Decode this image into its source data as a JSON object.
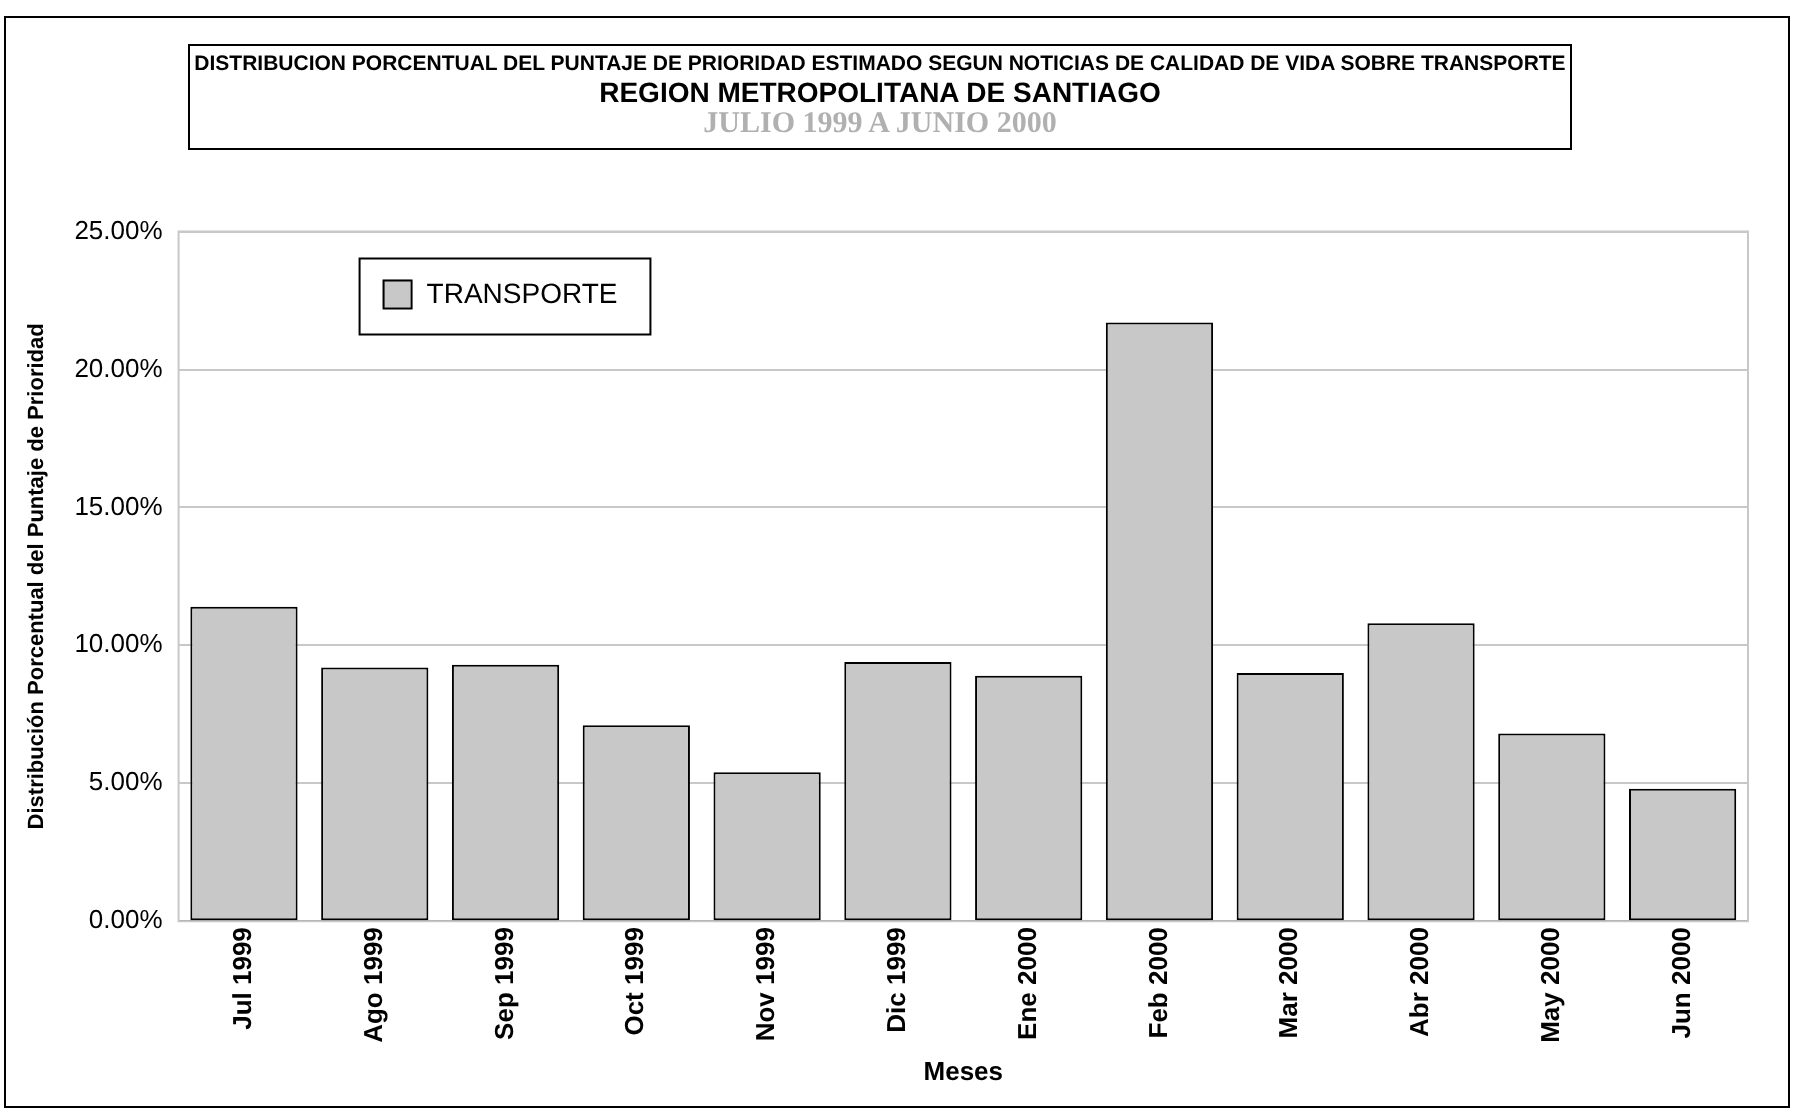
{
  "chart_data": {
    "type": "bar",
    "title": "DISTRIBUCION PORCENTUAL DEL PUNTAJE DE PRIORIDAD ESTIMADO SEGUN NOTICIAS DE CALIDAD DE VIDA SOBRE TRANSPORTE",
    "subtitle": "REGION METROPOLITANA DE SANTIAGO",
    "annotations": [
      "JULIO 1999 A JUNIO 2000"
    ],
    "xlabel": "Meses",
    "ylabel": "Distribución Porcentual del Puntaje de Prioridad",
    "categories": [
      "Jul 1999",
      "Ago 1999",
      "Sep 1999",
      "Oct 1999",
      "Nov 1999",
      "Dic 1999",
      "Ene 2000",
      "Feb 2000",
      "Mar 2000",
      "Abr 2000",
      "May 2000",
      "Jun 2000"
    ],
    "series": [
      {
        "name": "TRANSPORTE",
        "color": "#c8c8c8",
        "values": [
          11.4,
          9.2,
          9.3,
          7.1,
          5.4,
          9.4,
          8.9,
          21.7,
          9.0,
          10.8,
          6.8,
          4.8
        ]
      }
    ],
    "ylim": [
      0,
      25
    ],
    "yticks": [
      {
        "value": 0,
        "label": "0.00%"
      },
      {
        "value": 5,
        "label": "5.00%"
      },
      {
        "value": 10,
        "label": "10.00%"
      },
      {
        "value": 15,
        "label": "15.00%"
      },
      {
        "value": 20,
        "label": "20.00%"
      },
      {
        "value": 25,
        "label": "25.00%"
      }
    ],
    "grid": "y",
    "legend": "top left"
  }
}
